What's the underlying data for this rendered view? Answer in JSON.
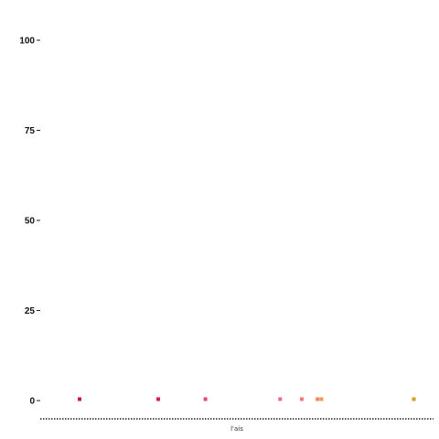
{
  "chart_data": {
    "type": "scatter",
    "title": "",
    "xlabel": "l'ais",
    "ylabel": "",
    "ylim": [
      -5,
      100
    ],
    "xlim": [
      0,
      100
    ],
    "yticks": [
      0,
      25,
      50,
      75,
      100
    ],
    "grid": false,
    "points": [
      {
        "x": 10,
        "y": 0.4,
        "color": "#c2185b"
      },
      {
        "x": 30,
        "y": 0.4,
        "color": "#d81b60"
      },
      {
        "x": 42,
        "y": 0.4,
        "color": "#e04a7a"
      },
      {
        "x": 61,
        "y": 0.4,
        "color": "#ec6a8a"
      },
      {
        "x": 66.5,
        "y": 0.4,
        "color": "#ef7a6a"
      },
      {
        "x": 70.5,
        "y": 0.4,
        "color": "#f08a5a"
      },
      {
        "x": 71.5,
        "y": 0.4,
        "color": "#f09a5a"
      },
      {
        "x": 95,
        "y": 0.4,
        "color": "#d4a020"
      }
    ]
  }
}
